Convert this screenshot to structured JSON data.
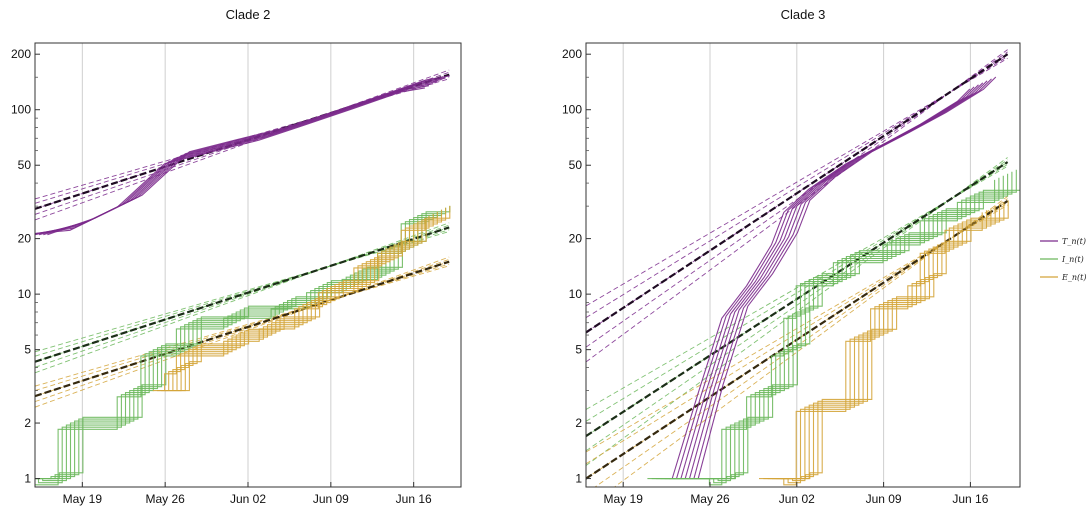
{
  "chart_data": [
    {
      "type": "line",
      "title": "Clade 2",
      "xlabel": "",
      "ylabel": "",
      "yscale": "log",
      "ylim": [
        0.9,
        230
      ],
      "xlim": [
        "2020-05-15",
        "2020-06-20"
      ],
      "x_ticks": [
        {
          "date": "2020-05-19",
          "label": "May 19"
        },
        {
          "date": "2020-05-26",
          "label": "May 26"
        },
        {
          "date": "2020-06-02",
          "label": "Jun 02"
        },
        {
          "date": "2020-06-09",
          "label": "Jun 09"
        },
        {
          "date": "2020-06-16",
          "label": "Jun 16"
        }
      ],
      "y_ticks": [
        1,
        2,
        5,
        10,
        20,
        50,
        100,
        200
      ],
      "grid": "vertical lines at x ticks",
      "series": [
        {
          "key": "T",
          "color": "#7b2a8c",
          "style": "solid",
          "x": [
            "2020-05-15",
            "2020-05-19",
            "2020-05-23",
            "2020-05-27",
            "2020-05-31",
            "2020-06-04",
            "2020-06-08",
            "2020-06-12",
            "2020-06-16",
            "2020-06-18"
          ],
          "y": [
            21,
            24,
            32,
            55,
            64,
            74,
            90,
            110,
            135,
            142
          ]
        },
        {
          "key": "I",
          "color": "#6cb85c",
          "style": "step",
          "x": [
            "2020-05-15",
            "2020-05-16",
            "2020-05-18",
            "2020-05-20",
            "2020-05-23",
            "2020-05-25",
            "2020-05-28",
            "2020-06-01",
            "2020-06-05",
            "2020-06-08",
            "2020-06-11",
            "2020-06-14",
            "2020-06-16",
            "2020-06-18"
          ],
          "y": [
            1,
            1,
            2,
            2,
            3,
            5,
            7,
            8,
            9,
            11,
            13,
            18,
            26,
            28
          ]
        },
        {
          "key": "E",
          "color": "#d4a53a",
          "style": "step",
          "x": [
            "2020-05-26",
            "2020-05-27",
            "2020-05-28",
            "2020-06-01",
            "2020-06-04",
            "2020-06-07",
            "2020-06-09",
            "2020-06-12",
            "2020-06-14",
            "2020-06-16",
            "2020-06-18"
          ],
          "y": [
            3,
            4,
            5,
            6,
            7,
            9,
            11,
            15,
            18,
            24,
            28
          ]
        }
      ],
      "fits": [
        {
          "key": "T",
          "color": "#7b2a8c",
          "x": [
            "2020-05-15",
            "2020-06-19"
          ],
          "y": [
            29,
            155
          ]
        },
        {
          "key": "I",
          "color": "#6cb85c",
          "x": [
            "2020-05-15",
            "2020-06-19"
          ],
          "y": [
            4.3,
            23
          ]
        },
        {
          "key": "E",
          "color": "#d4a53a",
          "x": [
            "2020-05-15",
            "2020-06-19"
          ],
          "y": [
            2.8,
            15
          ]
        }
      ]
    },
    {
      "type": "line",
      "title": "Clade 3",
      "xlabel": "",
      "ylabel": "",
      "yscale": "log",
      "ylim": [
        0.9,
        230
      ],
      "xlim": [
        "2020-05-16",
        "2020-06-20"
      ],
      "x_ticks": [
        {
          "date": "2020-05-19",
          "label": "May 19"
        },
        {
          "date": "2020-05-26",
          "label": "May 26"
        },
        {
          "date": "2020-06-02",
          "label": "Jun 02"
        },
        {
          "date": "2020-06-09",
          "label": "Jun 09"
        },
        {
          "date": "2020-06-16",
          "label": "Jun 16"
        }
      ],
      "y_ticks": [
        1,
        2,
        5,
        10,
        20,
        50,
        100,
        200
      ],
      "grid": "vertical lines at x ticks",
      "series": [
        {
          "key": "T",
          "color": "#7b2a8c",
          "style": "solid",
          "x": [
            "2020-05-24",
            "2020-05-26",
            "2020-05-28",
            "2020-05-30",
            "2020-06-01",
            "2020-06-02",
            "2020-06-04",
            "2020-06-07",
            "2020-06-10",
            "2020-06-13",
            "2020-06-16",
            "2020-06-17"
          ],
          "y": [
            1,
            3,
            8,
            12,
            20,
            30,
            40,
            55,
            70,
            90,
            120,
            140
          ]
        },
        {
          "key": "I",
          "color": "#6cb85c",
          "style": "step",
          "x": [
            "2020-05-22",
            "2020-05-27",
            "2020-05-28",
            "2020-05-30",
            "2020-06-01",
            "2020-06-02",
            "2020-06-03",
            "2020-06-06",
            "2020-06-10",
            "2020-06-13",
            "2020-06-16",
            "2020-06-19"
          ],
          "y": [
            1,
            1,
            2,
            3,
            5,
            8,
            12,
            16,
            20,
            27,
            34,
            45
          ]
        },
        {
          "key": "E",
          "color": "#d4a53a",
          "style": "step",
          "x": [
            "2020-05-31",
            "2020-06-02",
            "2020-06-03",
            "2020-06-07",
            "2020-06-09",
            "2020-06-12",
            "2020-06-13",
            "2020-06-15",
            "2020-06-18"
          ],
          "y": [
            1,
            1,
            2.5,
            6,
            9,
            12,
            18,
            24,
            30
          ]
        }
      ],
      "fits": [
        {
          "key": "T",
          "color": "#7b2a8c",
          "x": [
            "2020-05-16",
            "2020-06-19"
          ],
          "y": [
            6.2,
            200
          ]
        },
        {
          "key": "I",
          "color": "#6cb85c",
          "x": [
            "2020-05-16",
            "2020-06-19"
          ],
          "y": [
            1.7,
            52
          ]
        },
        {
          "key": "E",
          "color": "#d4a53a",
          "x": [
            "2020-05-16",
            "2020-06-19"
          ],
          "y": [
            1.0,
            32
          ]
        }
      ]
    }
  ],
  "legend": {
    "placement": "right",
    "items": [
      {
        "key": "T",
        "label": "T_n(t)",
        "color": "#7b2a8c"
      },
      {
        "key": "I",
        "label": "I_n(t)",
        "color": "#6cb85c"
      },
      {
        "key": "E",
        "label": "E_n(t)",
        "color": "#d4a53a"
      }
    ]
  }
}
